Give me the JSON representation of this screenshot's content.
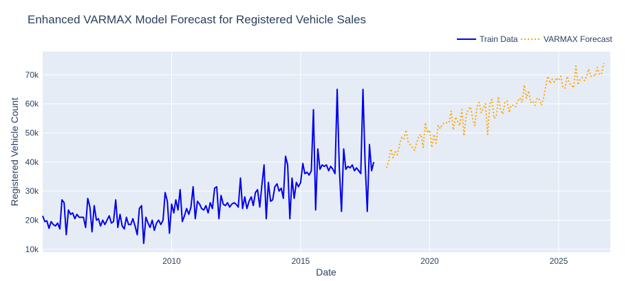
{
  "chart_data": {
    "type": "line",
    "title": "Enhanced VARMAX Model Forecast for Registered Vehicle Sales",
    "xlabel": "Date",
    "ylabel": "Registered Vehicle Count",
    "x_type": "date",
    "xlim": [
      "2005-01-01",
      "2027-01-01"
    ],
    "ylim": [
      9000,
      78000
    ],
    "x_ticks": [
      2010,
      2015,
      2020,
      2025
    ],
    "x_tick_labels": [
      "2010",
      "2015",
      "2020",
      "2025"
    ],
    "y_ticks": [
      10000,
      20000,
      30000,
      40000,
      50000,
      60000,
      70000
    ],
    "y_tick_labels": [
      "10k",
      "20k",
      "30k",
      "40k",
      "50k",
      "60k",
      "70k"
    ],
    "grid": true,
    "legend_position": "top-right",
    "series": [
      {
        "name": "Train Data",
        "color": "#0000ee",
        "dash": "solid",
        "start": "2005-01",
        "frequency": "monthly",
        "values": [
          21500,
          19500,
          19800,
          17200,
          19500,
          18500,
          18000,
          19000,
          17000,
          27000,
          26000,
          15000,
          23500,
          22000,
          22500,
          20500,
          22000,
          21000,
          21000,
          21000,
          17500,
          27500,
          24500,
          16000,
          25000,
          20000,
          20500,
          18000,
          20000,
          18500,
          20000,
          21500,
          19000,
          19500,
          27000,
          17500,
          22000,
          18000,
          17000,
          21000,
          18500,
          18500,
          20500,
          18000,
          15000,
          24000,
          25000,
          12000,
          21000,
          19000,
          17500,
          20000,
          16500,
          19000,
          20000,
          18500,
          20000,
          29500,
          26500,
          15500,
          25500,
          22500,
          27000,
          23500,
          30500,
          19500,
          21500,
          24000,
          22000,
          24500,
          31500,
          20500,
          26500,
          25500,
          24000,
          23500,
          25000,
          22500,
          26000,
          24000,
          31000,
          31500,
          20500,
          28500,
          25500,
          25000,
          26000,
          24500,
          25500,
          26000,
          25500,
          24500,
          34500,
          24000,
          28000,
          24000,
          26500,
          28000,
          25000,
          29500,
          30500,
          24500,
          32000,
          39000,
          20500,
          33000,
          26500,
          27000,
          31500,
          32500,
          30000,
          31000,
          27500,
          42000,
          39000,
          20500,
          34500,
          27500,
          33000,
          31500,
          33000,
          39500,
          36000,
          36500,
          35500,
          37000,
          58000,
          23500,
          44500,
          37500,
          39000,
          38500,
          39000,
          37000,
          38500,
          37500,
          36000,
          65000,
          38000,
          23000,
          44500,
          37500,
          38500,
          38000,
          39000,
          37000,
          38000,
          37000,
          36000,
          65000,
          40000,
          23000,
          46000,
          37000,
          40000
        ],
        "stats_note": ""
      },
      {
        "name": "VARMAX Forecast",
        "color": "#ffa500",
        "dash": "dot",
        "start": "2018-05",
        "frequency": "monthly",
        "values": [
          38000,
          40500,
          44500,
          41500,
          43500,
          42500,
          46000,
          48500,
          48000,
          51000,
          47000,
          46000,
          45000,
          44000,
          46500,
          49000,
          49500,
          45000,
          53500,
          50000,
          51000,
          45000,
          49500,
          46500,
          52500,
          51500,
          53000,
          53500,
          53500,
          53500,
          57500,
          51000,
          55500,
          54000,
          52500,
          58000,
          49000,
          56000,
          58000,
          59000,
          55000,
          52500,
          59000,
          60500,
          57000,
          58500,
          60000,
          49500,
          60000,
          61500,
          55000,
          55500,
          62500,
          58000,
          56500,
          60500,
          61000,
          57000,
          59500,
          59500,
          59000,
          61000,
          62000,
          60500,
          66500,
          62000,
          64500,
          60500,
          61000,
          59500,
          62000,
          61500,
          59500,
          62000,
          66000,
          69500,
          67000,
          68500,
          67500,
          69000,
          68000,
          69500,
          65500,
          65500,
          69500,
          67000,
          66500,
          65500,
          73000,
          66500,
          68500,
          69000,
          68000,
          69500,
          72000,
          69500,
          70000,
          69500,
          72500,
          70000,
          70500,
          74000
        ]
      }
    ]
  }
}
